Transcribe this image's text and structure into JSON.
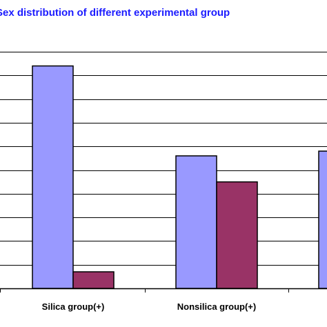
{
  "chart_data": {
    "type": "bar",
    "title": "Sex distribution of different experimental group",
    "categories": [
      "Silica group(+)",
      "Nonsilica group(+)",
      ""
    ],
    "series": [
      {
        "values": [
          94,
          56,
          58
        ]
      },
      {
        "values": [
          7,
          45,
          null
        ]
      }
    ],
    "xlabel": "",
    "ylabel": "",
    "ylim": [
      0,
      100
    ],
    "grid": true,
    "colors": {
      "series_1": "#9999ff",
      "series_2": "#993366",
      "title": "#1c1cff",
      "grid": "#000000"
    }
  }
}
